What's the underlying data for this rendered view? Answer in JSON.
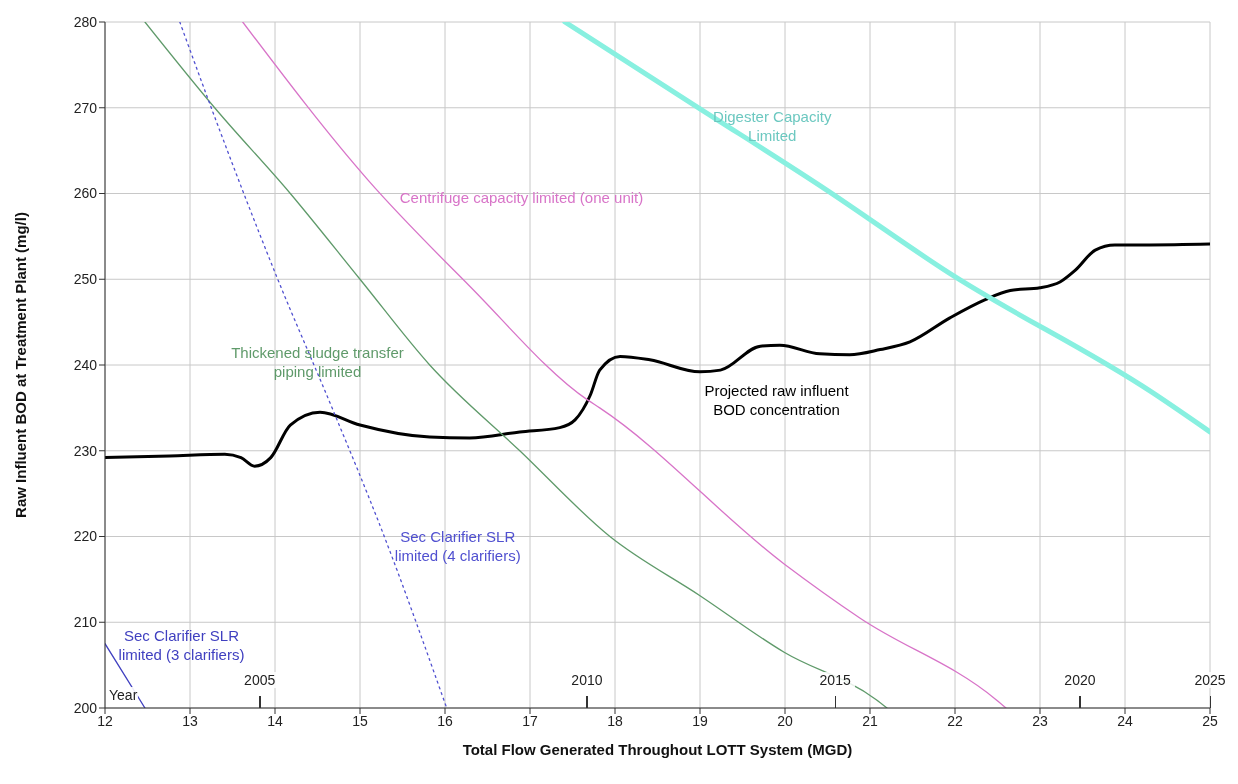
{
  "chart_data": {
    "type": "line",
    "xlabel": "Total Flow Generated Throughout LOTT System (MGD)",
    "ylabel": "Raw Influent BOD at Treatment Plant (mg/l)",
    "xlim": [
      12,
      25
    ],
    "xticks": [
      12,
      13,
      14,
      15,
      16,
      17,
      18,
      19,
      20,
      21,
      22,
      23,
      24,
      25
    ],
    "ylim": [
      200,
      280
    ],
    "yticks": [
      200,
      210,
      220,
      230,
      240,
      250,
      260,
      270,
      280
    ],
    "grid": true,
    "legend": false,
    "marker": "none",
    "series": [
      {
        "name": "Projected raw influent BOD concentration",
        "color": "#000000",
        "line_style": "solid",
        "x": [
          12,
          12.76,
          13.41,
          13.6,
          13.76,
          13.95,
          14.18,
          14.53,
          15.0,
          15.82,
          16.29,
          16.88,
          17.35,
          17.53,
          17.71,
          17.82,
          18.06,
          18.41,
          19.0,
          19.24,
          19.71,
          19.94,
          20.41,
          20.76,
          21.12,
          21.47,
          21.94,
          22.35,
          22.65,
          23.0,
          23.24,
          23.41,
          23.65,
          23.88,
          24.29,
          25
        ],
        "values": [
          229.2,
          229.4,
          229.6,
          229.2,
          228.2,
          229.2,
          233,
          234.5,
          233,
          231.6,
          231.5,
          232.2,
          232.7,
          233.6,
          236.5,
          239.4,
          241,
          240.6,
          239.2,
          239.4,
          242.2,
          242.3,
          241.3,
          241.2,
          241.8,
          242.7,
          245.5,
          247.6,
          248.7,
          249,
          249.7,
          251,
          253.4,
          254,
          254,
          254.1
        ]
      },
      {
        "name": "Thickened sludge transfer piping limited",
        "color": "#5f9a6a",
        "line_style": "solid",
        "x": [
          12.47,
          13.29,
          14.18,
          15.0,
          15.82,
          16.88,
          17.94,
          19.0,
          19.99,
          21.07,
          21.2
        ],
        "values": [
          280,
          270,
          260,
          250,
          240,
          230,
          220,
          213.1,
          206.5,
          201,
          200
        ]
      },
      {
        "name": "Centrifuge capacity limited (one unit)",
        "color": "#d874c8",
        "line_style": "solid",
        "x": [
          13.62,
          15.1,
          16.28,
          17.68,
          17.82,
          19.99,
          20.88,
          22.48,
          22.6
        ],
        "values": [
          280,
          261.5,
          249.3,
          235.9,
          235,
          216.8,
          210.5,
          201,
          200
        ]
      },
      {
        "name": "Sec Clarifier SLR limited (4 clarifiers)",
        "color": "#5050d0",
        "line_style": "dotted",
        "x": [
          12.88,
          13.25,
          14.02,
          14.68,
          15.27,
          16.02
        ],
        "values": [
          280,
          270,
          250.3,
          234.8,
          220.4,
          200
        ]
      },
      {
        "name": "Sec Clarifier SLR limited (3 clarifiers)",
        "color": "#4040c0",
        "line_style": "solid",
        "x": [
          12,
          12.47
        ],
        "values": [
          207.5,
          200
        ]
      },
      {
        "name": "Digester Capacity Limited",
        "color": "#88f0e0",
        "line_style": "solid",
        "x": [
          17.41,
          18.95,
          20.46,
          21.92,
          24.32,
          25
        ],
        "values": [
          280,
          270.2,
          260.6,
          250.8,
          236.8,
          232.2
        ]
      }
    ],
    "annotations": [
      "Year",
      "2005",
      "2010",
      "2015",
      "2020",
      "2025"
    ]
  }
}
